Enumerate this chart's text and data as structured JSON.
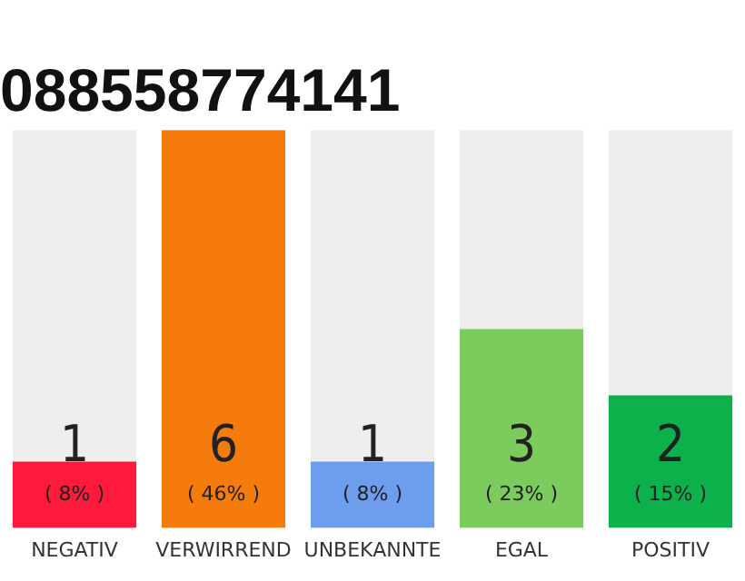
{
  "chart_data": {
    "type": "bar",
    "title": "088558774141",
    "categories": [
      "NEGATIV",
      "VERWIRREND",
      "UNBEKANNTE",
      "EGAL",
      "POSITIV"
    ],
    "values": [
      1,
      6,
      1,
      3,
      2
    ],
    "colors": [
      "#ff1a3c",
      "#f57c0c",
      "#6d9eee",
      "#7ccb5d",
      "#0db14b"
    ],
    "value_labels": [
      "1\n( 8% )",
      "6\n( 46% )",
      "1\n( 8% )",
      "3\n( 23% )",
      "2\n( 15% )"
    ],
    "ylim": [
      0,
      6
    ],
    "tick_labels": "x",
    "grid": false,
    "legend": false
  }
}
